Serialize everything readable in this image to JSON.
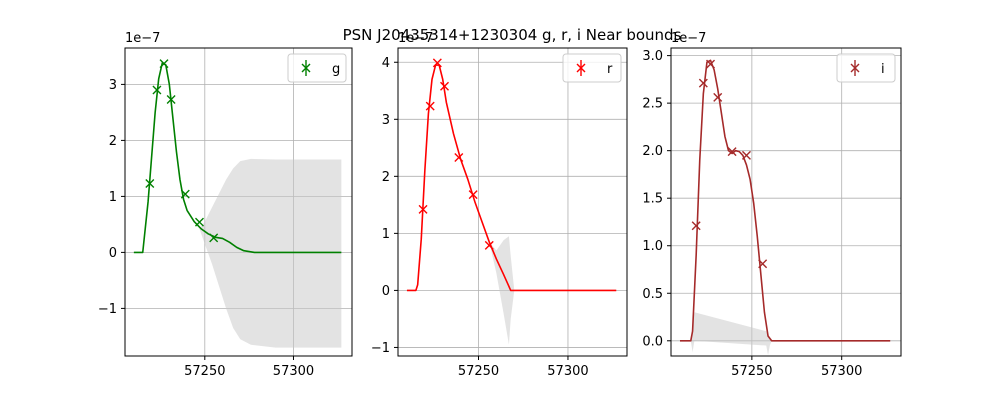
{
  "figure": {
    "title": "PSN J20435314+1230304  g, r, i Near bounds"
  },
  "chart_data": [
    {
      "type": "line",
      "band": "g",
      "color": "#008000",
      "xlim": [
        57205,
        57333
      ],
      "ylim": [
        -1.85,
        3.65
      ],
      "yticks": [
        -1,
        0,
        1,
        2,
        3
      ],
      "xticks": [
        57250,
        57300
      ],
      "offset_label": "1e−7",
      "legend": {
        "label": "g",
        "position": "top-right"
      },
      "points": [
        {
          "x": 57219,
          "y": 1.23
        },
        {
          "x": 57223,
          "y": 2.9
        },
        {
          "x": 57227,
          "y": 3.37
        },
        {
          "x": 57231,
          "y": 2.73
        },
        {
          "x": 57239,
          "y": 1.04
        },
        {
          "x": 57247,
          "y": 0.54
        },
        {
          "x": 57255,
          "y": 0.26
        }
      ],
      "model_x": [
        57210,
        57215,
        57216,
        57218,
        57220,
        57222,
        57224,
        57226,
        57228,
        57230,
        57232,
        57234,
        57236,
        57238,
        57240,
        57244,
        57248,
        57252,
        57256,
        57260,
        57264,
        57268,
        57272,
        57278,
        57290,
        57327
      ],
      "model_y": [
        0,
        0,
        0.3,
        0.9,
        1.7,
        2.5,
        3.1,
        3.38,
        3.35,
        3.0,
        2.4,
        1.8,
        1.3,
        0.95,
        0.75,
        0.55,
        0.42,
        0.33,
        0.27,
        0.25,
        0.18,
        0.09,
        0.03,
        0.0,
        0.0,
        0.0
      ],
      "band_x": [
        57247,
        57250,
        57254,
        57258,
        57262,
        57266,
        57270,
        57276,
        57290,
        57327
      ],
      "band_upper": [
        0.42,
        0.55,
        0.8,
        1.05,
        1.3,
        1.5,
        1.63,
        1.67,
        1.66,
        1.66
      ],
      "band_lower": [
        0.42,
        0.15,
        -0.2,
        -0.6,
        -1.0,
        -1.35,
        -1.55,
        -1.65,
        -1.7,
        -1.7
      ]
    },
    {
      "type": "line",
      "band": "r",
      "color": "#ff0000",
      "xlim": [
        57205,
        57333
      ],
      "ylim": [
        -1.15,
        4.25
      ],
      "yticks": [
        -1,
        0,
        1,
        2,
        3,
        4
      ],
      "xticks": [
        57250,
        57300
      ],
      "offset_label": "1e−7",
      "legend": {
        "label": "r",
        "position": "top-right"
      },
      "points": [
        {
          "x": 57219,
          "y": 1.42
        },
        {
          "x": 57223,
          "y": 3.23
        },
        {
          "x": 57227,
          "y": 3.99
        },
        {
          "x": 57231,
          "y": 3.58
        },
        {
          "x": 57239,
          "y": 2.33
        },
        {
          "x": 57247,
          "y": 1.68
        },
        {
          "x": 57256,
          "y": 0.79
        }
      ],
      "model_x": [
        57210,
        57215,
        57216,
        57218,
        57220,
        57222,
        57224,
        57226,
        57228,
        57230,
        57232,
        57236,
        57240,
        57244,
        57248,
        57252,
        57256,
        57260,
        57264,
        57268,
        57290,
        57327
      ],
      "model_y": [
        0,
        0,
        0.1,
        0.9,
        2.1,
        3.1,
        3.7,
        3.95,
        3.95,
        3.7,
        3.3,
        2.75,
        2.3,
        1.95,
        1.55,
        1.2,
        0.85,
        0.55,
        0.28,
        0.0,
        0.0,
        0.0
      ],
      "band_x": [
        57256,
        57260,
        57264,
        57267,
        57268,
        57270
      ],
      "band_upper": [
        0.85,
        0.7,
        0.88,
        0.95,
        0.6,
        0.0
      ],
      "band_lower": [
        0.85,
        0.3,
        -0.4,
        -0.95,
        -0.5,
        0.0
      ]
    },
    {
      "type": "line",
      "band": "i",
      "color": "#a52a2a",
      "xlim": [
        57205,
        57333
      ],
      "ylim": [
        -0.16,
        3.08
      ],
      "yticks": [
        0.0,
        0.5,
        1.0,
        1.5,
        2.0,
        2.5,
        3.0
      ],
      "yticklabels": [
        "0.0",
        "0.5",
        "1.0",
        "1.5",
        "2.0",
        "2.5",
        "3.0"
      ],
      "xticks": [
        57250,
        57300
      ],
      "offset_label": "1e−7",
      "legend": {
        "label": "i",
        "position": "top-right"
      },
      "points": [
        {
          "x": 57219,
          "y": 1.21
        },
        {
          "x": 57223,
          "y": 2.71
        },
        {
          "x": 57227,
          "y": 2.91
        },
        {
          "x": 57231,
          "y": 2.56
        },
        {
          "x": 57239,
          "y": 1.99
        },
        {
          "x": 57247,
          "y": 1.95
        },
        {
          "x": 57256,
          "y": 0.81
        }
      ],
      "model_x": [
        57210,
        57216,
        57217,
        57219,
        57221,
        57223,
        57225,
        57227,
        57229,
        57231,
        57233,
        57235,
        57237,
        57239,
        57241,
        57243,
        57245,
        57247,
        57249,
        57251,
        57253,
        57255,
        57257,
        57259,
        57261,
        57290,
        57327
      ],
      "model_y": [
        0,
        0,
        0.1,
        0.9,
        1.9,
        2.6,
        2.93,
        2.95,
        2.85,
        2.65,
        2.4,
        2.15,
        2.0,
        1.97,
        2.0,
        1.99,
        1.95,
        1.85,
        1.7,
        1.45,
        1.1,
        0.7,
        0.3,
        0.05,
        0.0,
        0.0,
        0.0
      ],
      "band_x": [
        57216,
        57217,
        57218,
        57258,
        57259,
        57260,
        57261
      ],
      "band_upper": [
        0,
        0.15,
        0.3,
        0.1,
        0.05,
        0.02,
        0.0
      ],
      "band_lower": [
        0,
        -0.12,
        0.0,
        -0.05,
        -0.15,
        -0.05,
        0.0
      ]
    }
  ]
}
